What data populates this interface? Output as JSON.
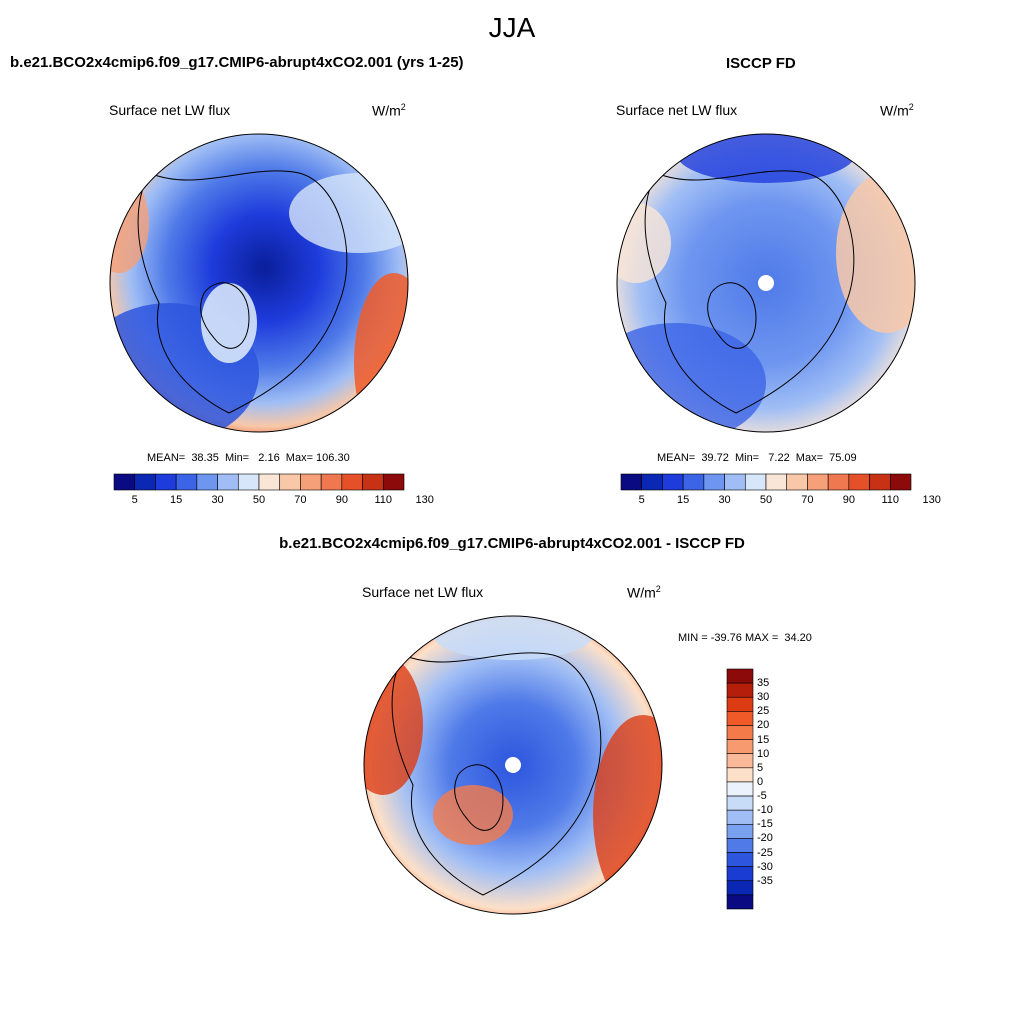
{
  "figure": {
    "season": "JJA"
  },
  "panels": [
    {
      "title": "b.e21.BCO2x4cmip6.f09_g17.CMIP6-abrupt4xCO2.001 (yrs 1-25)",
      "variable": "Surface net LW flux",
      "units": "W/m",
      "units_sup": "2",
      "stats": "MEAN=  38.35  Min=   2.16  Max= 106.30"
    },
    {
      "title": "ISCCP FD",
      "variable": "Surface net LW flux",
      "units": "W/m",
      "units_sup": "2",
      "stats": "MEAN=  39.72  Min=   7.22  Max=  75.09"
    },
    {
      "title": "b.e21.BCO2x4cmip6.f09_g17.CMIP6-abrupt4xCO2.001 - ISCCP FD",
      "variable": "Surface net LW flux",
      "units": "W/m",
      "units_sup": "2",
      "stats": "MIN = -39.76 MAX =  34.20"
    }
  ],
  "colorbars": {
    "absolute": {
      "colors": [
        "#0a0a82",
        "#0a28b4",
        "#1e3cdc",
        "#3c64e6",
        "#6e96f0",
        "#a0bef5",
        "#d7e6fa",
        "#fae6d7",
        "#f8c8a8",
        "#f5a078",
        "#f07850",
        "#e65028",
        "#c83214",
        "#8c0a0a"
      ],
      "labels": [
        "5",
        "15",
        "30",
        "50",
        "70",
        "90",
        "110",
        "130"
      ]
    },
    "difference": {
      "colors": [
        "#8c0a0a",
        "#b41e0a",
        "#dc3c14",
        "#f05a28",
        "#f57a4a",
        "#f89a70",
        "#fab998",
        "#fde0c8",
        "#ebf2fc",
        "#c8dcf8",
        "#a0bef5",
        "#7aa0f0",
        "#4f7ae8",
        "#2d55de",
        "#1a3cd2",
        "#0a28b4",
        "#0a0a82"
      ],
      "labels": [
        "35",
        "30",
        "25",
        "20",
        "15",
        "10",
        "5",
        "0",
        "-5",
        "-10",
        "-15",
        "-20",
        "-25",
        "-30",
        "-35"
      ]
    }
  }
}
